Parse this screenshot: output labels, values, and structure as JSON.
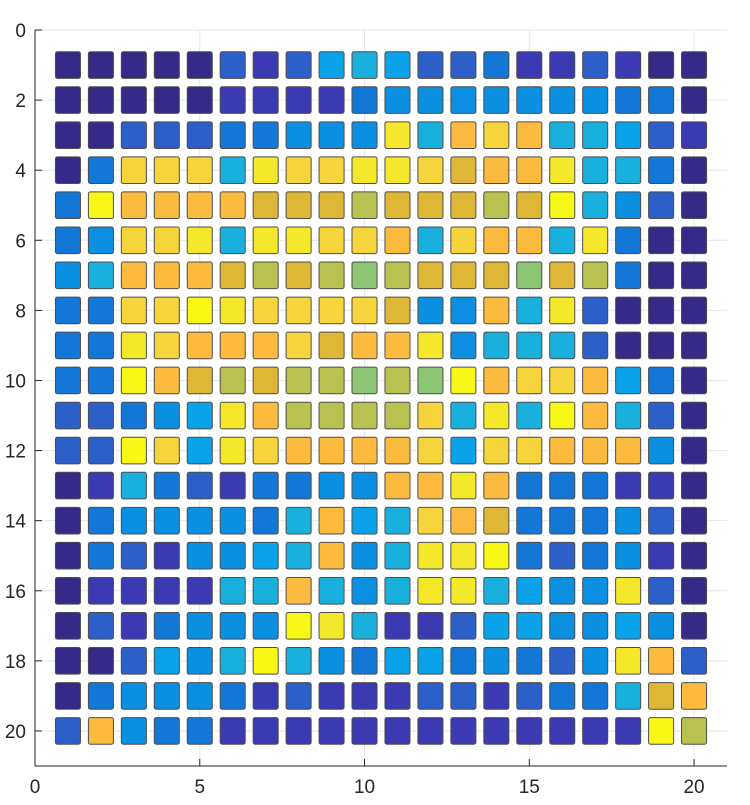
{
  "chart_data": {
    "type": "heatmap",
    "title": "",
    "xlabel": "",
    "ylabel": "",
    "xlim": [
      0,
      21
    ],
    "ylim": [
      21,
      0
    ],
    "y_reversed": true,
    "grid": true,
    "xticks": [
      0,
      5,
      10,
      15,
      20
    ],
    "yticks": [
      0,
      2,
      4,
      6,
      8,
      10,
      12,
      14,
      16,
      18,
      20
    ],
    "xtick_labels": [
      "0",
      "5",
      "10",
      "15",
      "20"
    ],
    "ytick_labels": [
      "0",
      "2",
      "4",
      "6",
      "8",
      "10",
      "12",
      "14",
      "16",
      "18",
      "20"
    ],
    "value_range": [
      0,
      15
    ],
    "colormap": [
      "#352a87",
      "#3b3ab2",
      "#2c5fc8",
      "#1277d6",
      "#0b8fe0",
      "#0aa2e8",
      "#1ab0dd",
      "#2cbbc6",
      "#55c39c",
      "#8cc573",
      "#b9c150",
      "#dfb736",
      "#fcbb3e",
      "#f6d43c",
      "#f5e82a",
      "#f9f716"
    ],
    "rows": [
      [
        0,
        0,
        0,
        0,
        0,
        2,
        1,
        2,
        5,
        6,
        5,
        2,
        2,
        3,
        1,
        1,
        2,
        1,
        0,
        0
      ],
      [
        0,
        0,
        0,
        0,
        0,
        1,
        1,
        1,
        1,
        3,
        4,
        4,
        4,
        4,
        4,
        4,
        4,
        3,
        3,
        0
      ],
      [
        0,
        0,
        2,
        2,
        2,
        3,
        3,
        4,
        4,
        4,
        14,
        6,
        12,
        13,
        12,
        6,
        6,
        5,
        2,
        1
      ],
      [
        0,
        3,
        13,
        13,
        13,
        6,
        14,
        13,
        13,
        14,
        14,
        13,
        11,
        12,
        12,
        14,
        6,
        6,
        3,
        0
      ],
      [
        3,
        15,
        12,
        12,
        12,
        12,
        11,
        11,
        11,
        10,
        11,
        11,
        11,
        10,
        11,
        15,
        6,
        4,
        2,
        0
      ],
      [
        3,
        4,
        13,
        13,
        14,
        6,
        14,
        14,
        13,
        13,
        12,
        6,
        13,
        12,
        12,
        6,
        14,
        3,
        0,
        0
      ],
      [
        4,
        6,
        12,
        12,
        12,
        11,
        10,
        11,
        10,
        9,
        10,
        11,
        11,
        11,
        9,
        11,
        10,
        3,
        0,
        0
      ],
      [
        3,
        3,
        13,
        13,
        15,
        14,
        13,
        13,
        13,
        13,
        11,
        4,
        4,
        12,
        6,
        14,
        2,
        0,
        0,
        0
      ],
      [
        3,
        3,
        14,
        13,
        12,
        12,
        12,
        13,
        11,
        12,
        12,
        14,
        4,
        6,
        6,
        6,
        2,
        0,
        0,
        0
      ],
      [
        3,
        3,
        15,
        12,
        11,
        10,
        11,
        10,
        10,
        9,
        10,
        9,
        15,
        12,
        13,
        13,
        12,
        5,
        3,
        0
      ],
      [
        2,
        2,
        3,
        4,
        5,
        14,
        12,
        10,
        10,
        10,
        10,
        13,
        6,
        14,
        6,
        15,
        12,
        6,
        2,
        0
      ],
      [
        2,
        2,
        15,
        13,
        5,
        14,
        13,
        12,
        12,
        12,
        12,
        13,
        5,
        13,
        13,
        12,
        12,
        12,
        4,
        0
      ],
      [
        0,
        1,
        6,
        3,
        2,
        1,
        3,
        3,
        4,
        4,
        12,
        12,
        14,
        12,
        3,
        3,
        3,
        1,
        1,
        0
      ],
      [
        0,
        3,
        4,
        4,
        4,
        4,
        3,
        6,
        12,
        5,
        6,
        13,
        12,
        11,
        3,
        3,
        3,
        4,
        2,
        0
      ],
      [
        0,
        3,
        2,
        1,
        4,
        4,
        5,
        6,
        12,
        4,
        6,
        14,
        14,
        15,
        3,
        2,
        3,
        4,
        1,
        0
      ],
      [
        0,
        1,
        1,
        1,
        1,
        6,
        6,
        12,
        6,
        4,
        6,
        14,
        14,
        6,
        5,
        4,
        4,
        14,
        2,
        0
      ],
      [
        0,
        2,
        1,
        3,
        4,
        4,
        4,
        15,
        14,
        6,
        1,
        1,
        2,
        5,
        5,
        4,
        4,
        5,
        4,
        0
      ],
      [
        0,
        0,
        2,
        5,
        4,
        6,
        15,
        6,
        4,
        3,
        5,
        5,
        3,
        4,
        3,
        2,
        4,
        14,
        12,
        2
      ],
      [
        0,
        3,
        4,
        4,
        4,
        3,
        1,
        2,
        1,
        1,
        1,
        2,
        2,
        1,
        2,
        3,
        3,
        6,
        11,
        12
      ],
      [
        2,
        12,
        4,
        3,
        3,
        1,
        1,
        1,
        1,
        1,
        1,
        1,
        1,
        1,
        1,
        1,
        1,
        1,
        15,
        10
      ]
    ]
  }
}
